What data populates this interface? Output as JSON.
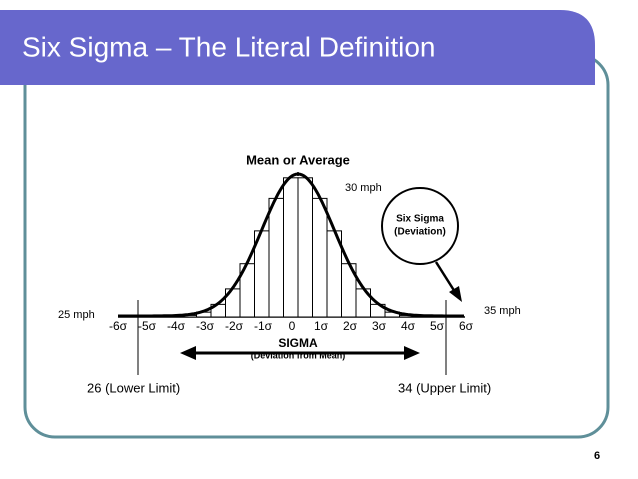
{
  "title": "Six Sigma – The Literal Definition",
  "diagram": {
    "heading": "Mean or Average",
    "callout": [
      "Six Sigma",
      "(Deviation)"
    ],
    "sigma_labels": [
      "-6σ",
      "-5σ",
      "-4σ",
      "-3σ",
      "-2σ",
      "-1σ",
      "0",
      "1σ",
      "2σ",
      "3σ",
      "4σ",
      "5σ",
      "6σ"
    ],
    "axis_label": "SIGMA",
    "axis_sublabel": "(Deviation from Mean)"
  },
  "annotations": {
    "mean": "30 mph",
    "upper": "35 mph",
    "lower": "25 mph",
    "lower_limit": "26 (Lower Limit)",
    "upper_limit": "34 (Upper Limit)"
  },
  "page_number": "6"
}
